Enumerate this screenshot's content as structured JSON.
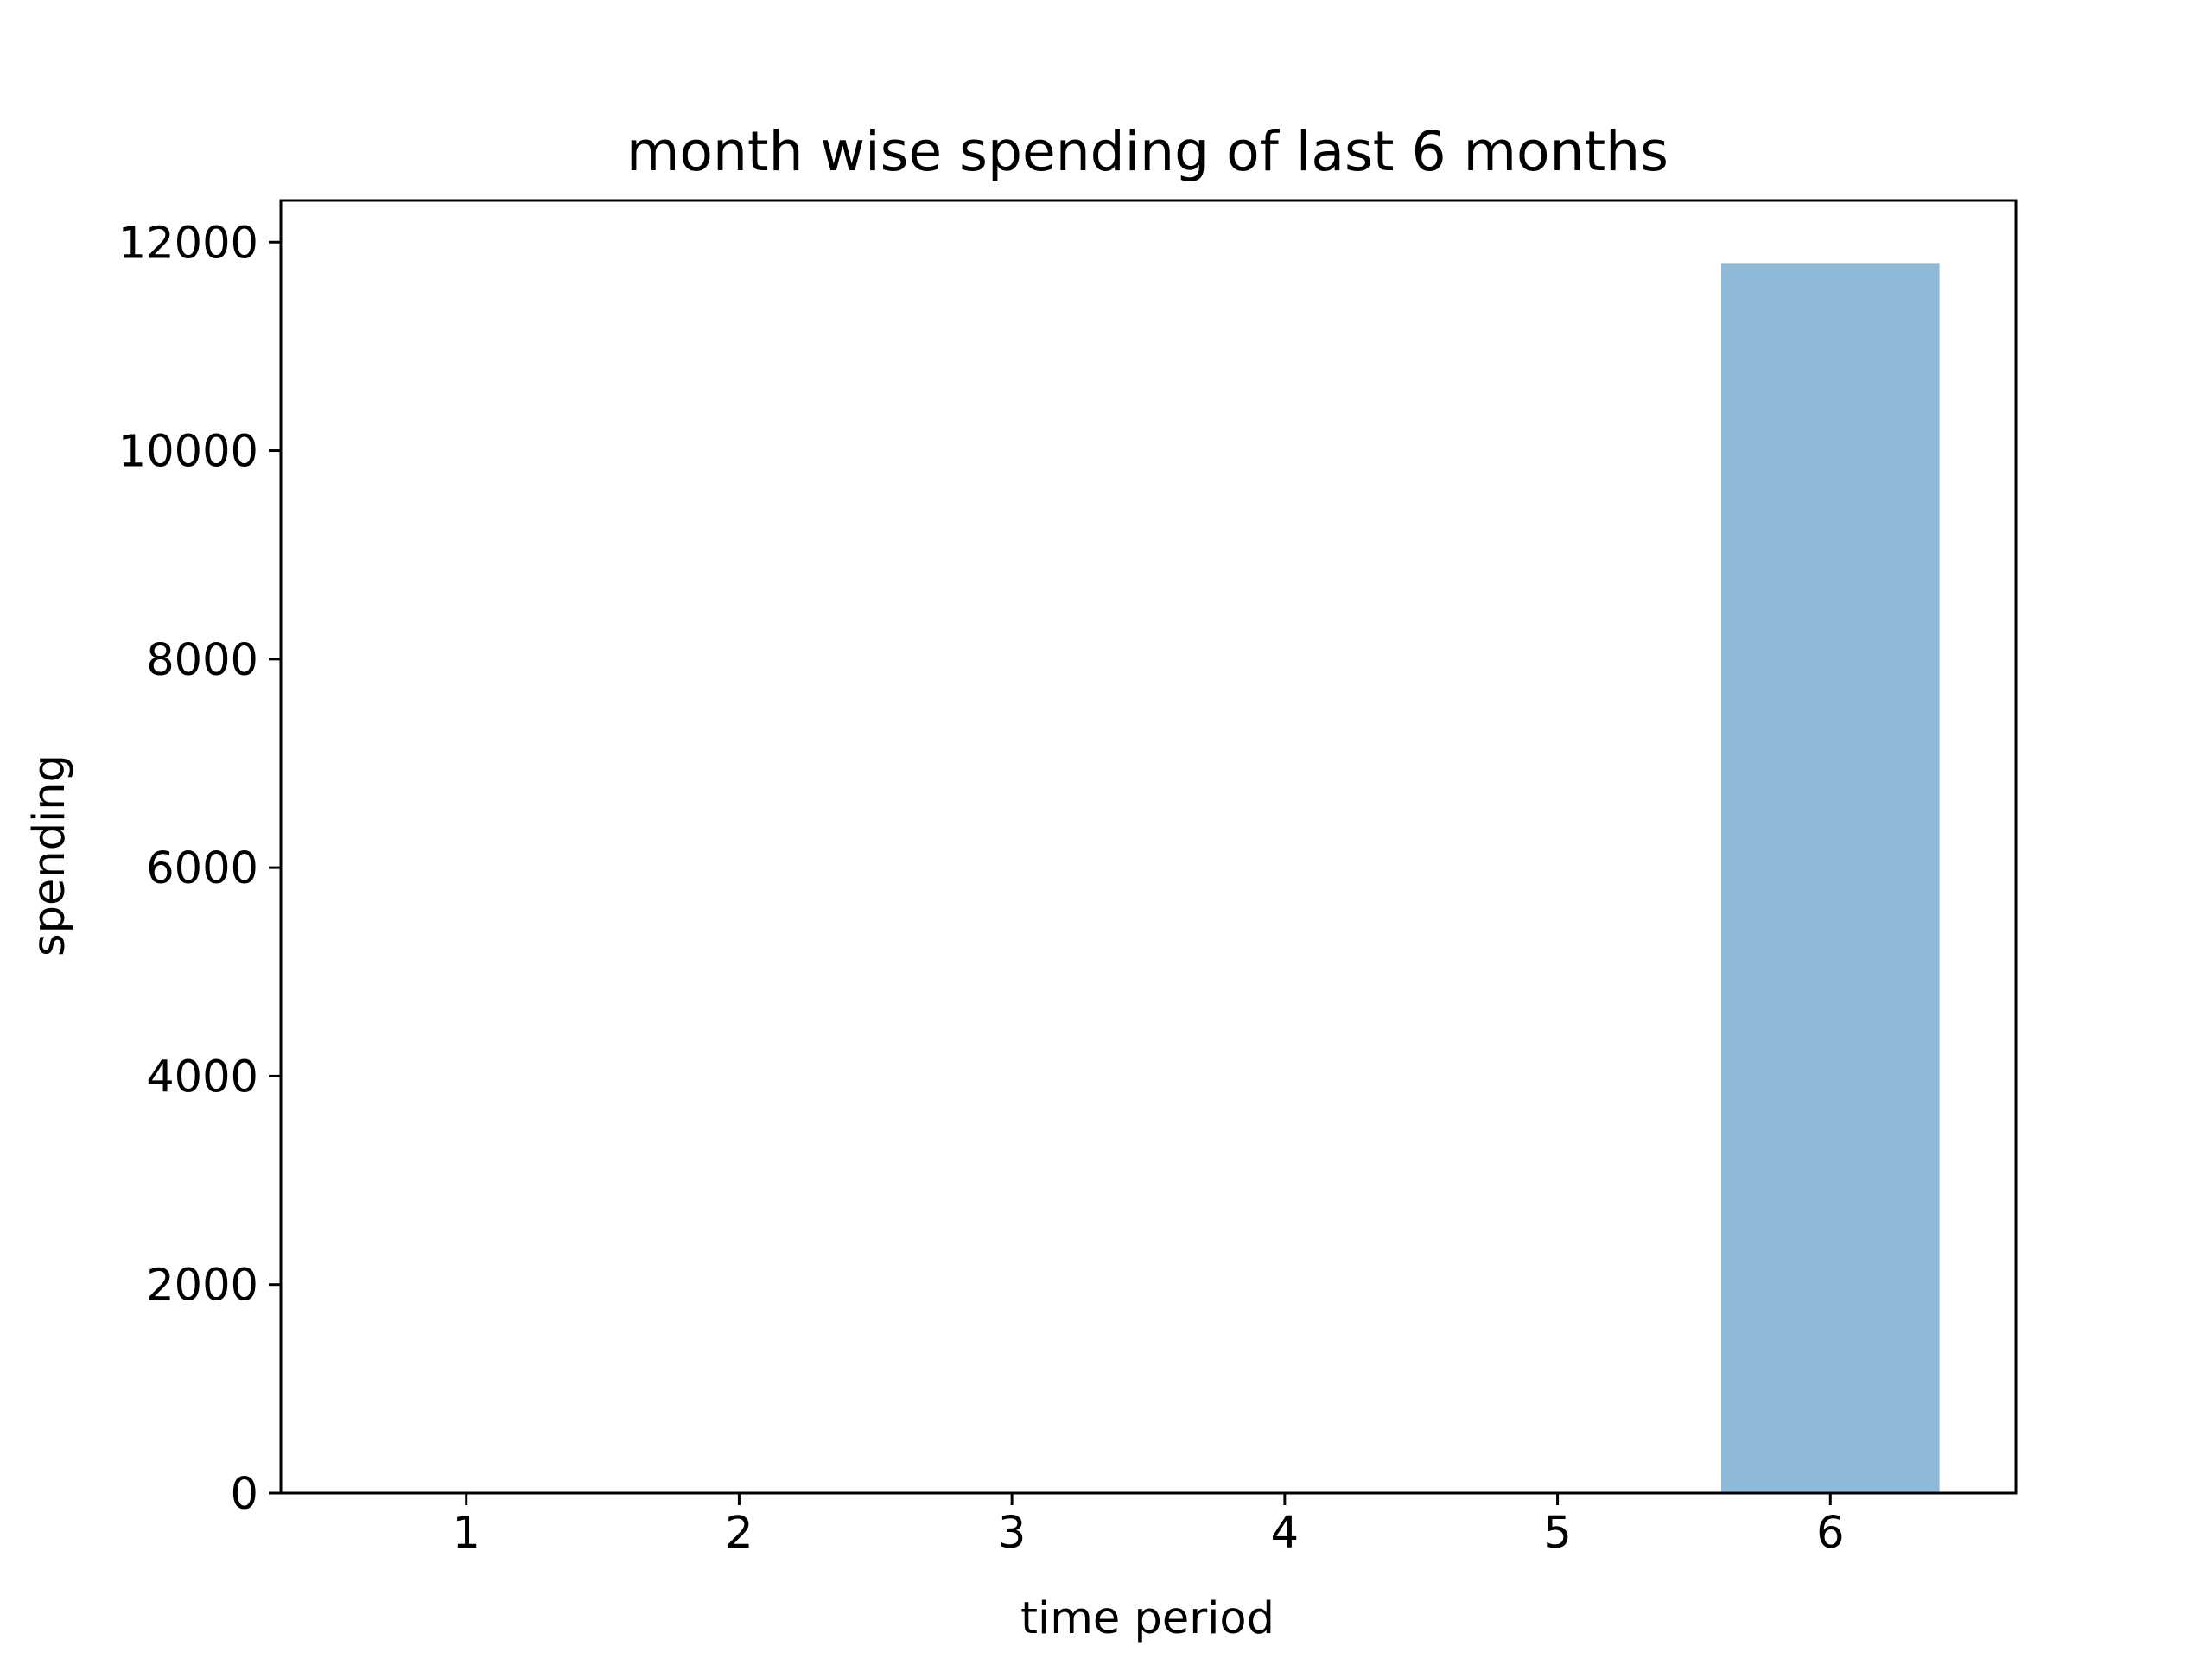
{
  "chart_data": {
    "type": "bar",
    "title": "month wise spending of last 6 months",
    "xlabel": "time period",
    "ylabel": "spending",
    "categories": [
      "1",
      "2",
      "3",
      "4",
      "5",
      "6"
    ],
    "values": [
      0,
      0,
      0,
      0,
      0,
      11800
    ],
    "xlim": [
      0.32,
      6.68
    ],
    "ylim": [
      0,
      12400
    ],
    "yticks": [
      0,
      2000,
      4000,
      6000,
      8000,
      10000,
      12000
    ],
    "bar_width": 0.8,
    "bar_color": "#8fb9d8",
    "grid": false,
    "legend": "none"
  }
}
